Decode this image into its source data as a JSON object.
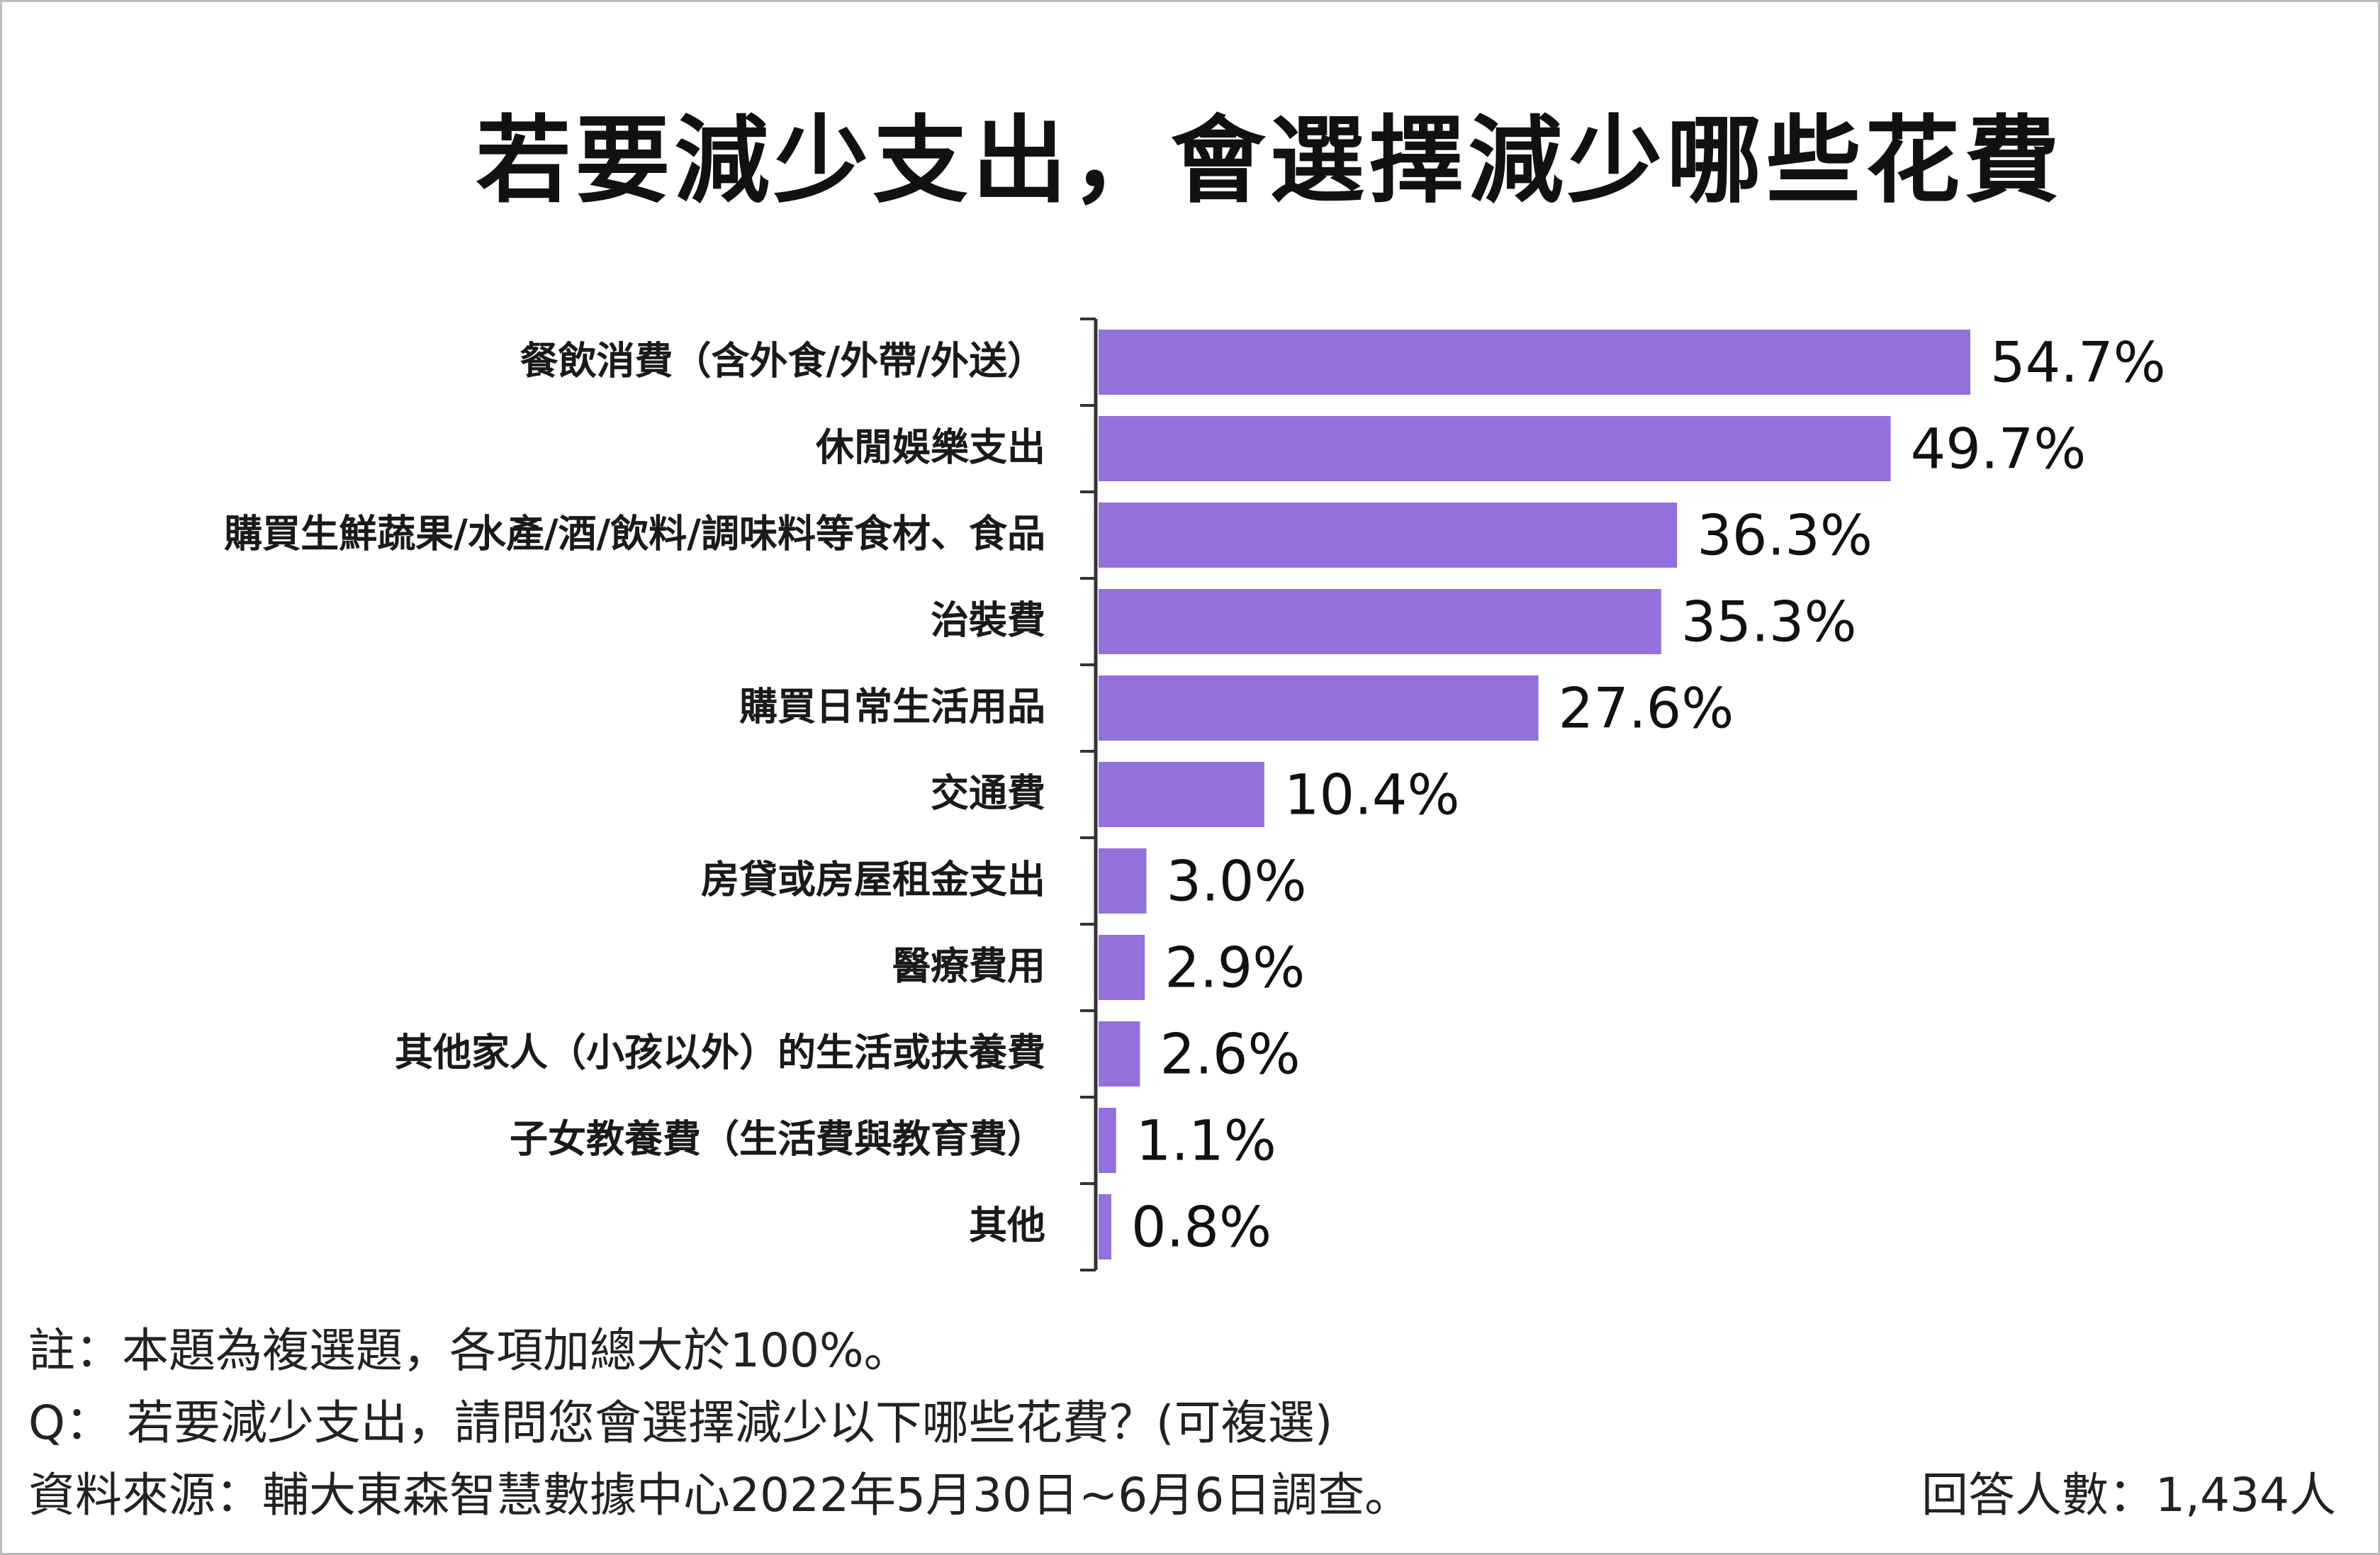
{
  "chart_data": {
    "type": "bar",
    "orientation": "horizontal",
    "title": "若要減少支出，會選擇減少哪些花費",
    "categories": [
      "餐飲消費（含外食/外帶/外送）",
      "休閒娛樂支出",
      "購買生鮮蔬果/水產/酒/飲料/調味料等食材、食品",
      "治裝費",
      "購買日常生活用品",
      "交通費",
      "房貸或房屋租金支出",
      "醫療費用",
      "其他家人（小孩以外）的生活或扶養費",
      "子女教養費（生活費與教育費）",
      "其他"
    ],
    "values": [
      54.7,
      49.7,
      36.3,
      35.3,
      27.6,
      10.4,
      3.0,
      2.9,
      2.6,
      1.1,
      0.8
    ],
    "value_labels": [
      "54.7%",
      "49.7%",
      "36.3%",
      "35.3%",
      "27.6%",
      "10.4%",
      "3.0%",
      "2.9%",
      "2.6%",
      "1.1%",
      "0.8%"
    ],
    "unit": "%",
    "xlim": [
      0,
      54.7
    ],
    "grid": false,
    "bar_color": "#9370DB"
  },
  "notes": {
    "note": "註：本題為複選題，各項加總大於100%。",
    "question": "Q： 若要減少支出，請問您會選擇減少以下哪些花費？(可複選)",
    "source": "資料來源：輔大東森智慧數據中心2022年5月30日~6月6日調查。",
    "respondents": "回答人數：1,434人"
  }
}
